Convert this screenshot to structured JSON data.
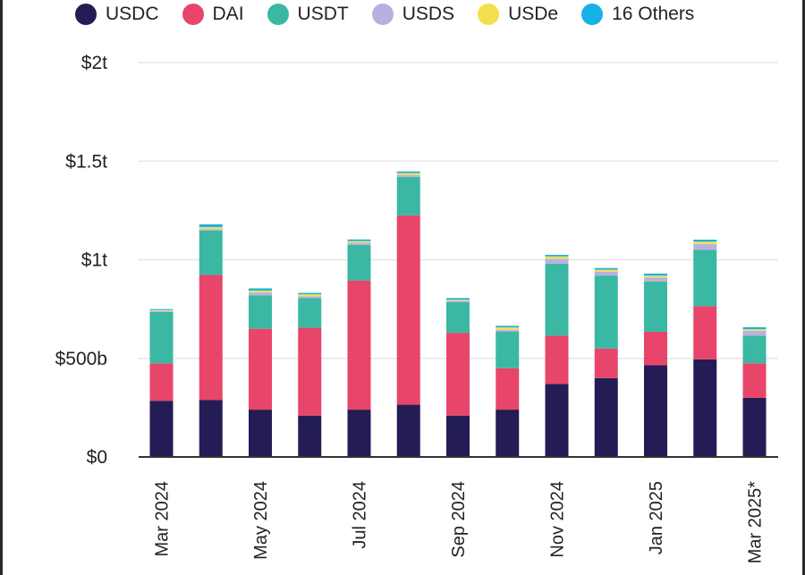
{
  "chart_data": {
    "type": "bar",
    "stacked": true,
    "categories": [
      "Mar 2024",
      "Apr 2024",
      "May 2024",
      "Jun 2024",
      "Jul 2024",
      "Aug 2024",
      "Sep 2024",
      "Oct 2024",
      "Nov 2024",
      "Dec 2024",
      "Jan 2025",
      "Feb 2025",
      "Mar 2025*"
    ],
    "x_tick_labels": [
      "Mar 2024",
      "",
      "May 2024",
      "",
      "Jul 2024",
      "",
      "Sep 2024",
      "",
      "Nov 2024",
      "",
      "Jan 2025",
      "",
      "Mar 2025*"
    ],
    "y_ticks": [
      {
        "value": 0,
        "label": "$0"
      },
      {
        "value": 500,
        "label": "$500b"
      },
      {
        "value": 1000,
        "label": "$1t"
      },
      {
        "value": 1500,
        "label": "$1.5t"
      },
      {
        "value": 2000,
        "label": "$2t"
      }
    ],
    "ylim": [
      0,
      2000
    ],
    "y_unit": "billions USD",
    "grid": true,
    "legend_position": "top",
    "series": [
      {
        "name": "USDC",
        "color": "#241c54",
        "values": [
          285,
          288,
          240,
          210,
          240,
          265,
          210,
          240,
          370,
          400,
          465,
          495,
          300
        ]
      },
      {
        "name": "DAI",
        "color": "#e8456b",
        "values": [
          190,
          635,
          410,
          445,
          655,
          960,
          420,
          210,
          245,
          150,
          170,
          270,
          175
        ]
      },
      {
        "name": "USDT",
        "color": "#3ab8a3",
        "values": [
          260,
          225,
          170,
          150,
          180,
          195,
          155,
          185,
          365,
          370,
          255,
          285,
          140
        ]
      },
      {
        "name": "USDS",
        "color": "#b8b1e0",
        "values": [
          5,
          8,
          14,
          10,
          12,
          10,
          8,
          10,
          25,
          20,
          20,
          30,
          25
        ]
      },
      {
        "name": "USDe",
        "color": "#f4e04d",
        "values": [
          5,
          10,
          10,
          10,
          8,
          10,
          5,
          12,
          12,
          10,
          10,
          12,
          8
        ]
      },
      {
        "name": "16 Others",
        "color": "#16b2e6",
        "values": [
          5,
          14,
          11,
          7,
          8,
          8,
          8,
          8,
          8,
          8,
          10,
          10,
          10
        ]
      }
    ]
  }
}
